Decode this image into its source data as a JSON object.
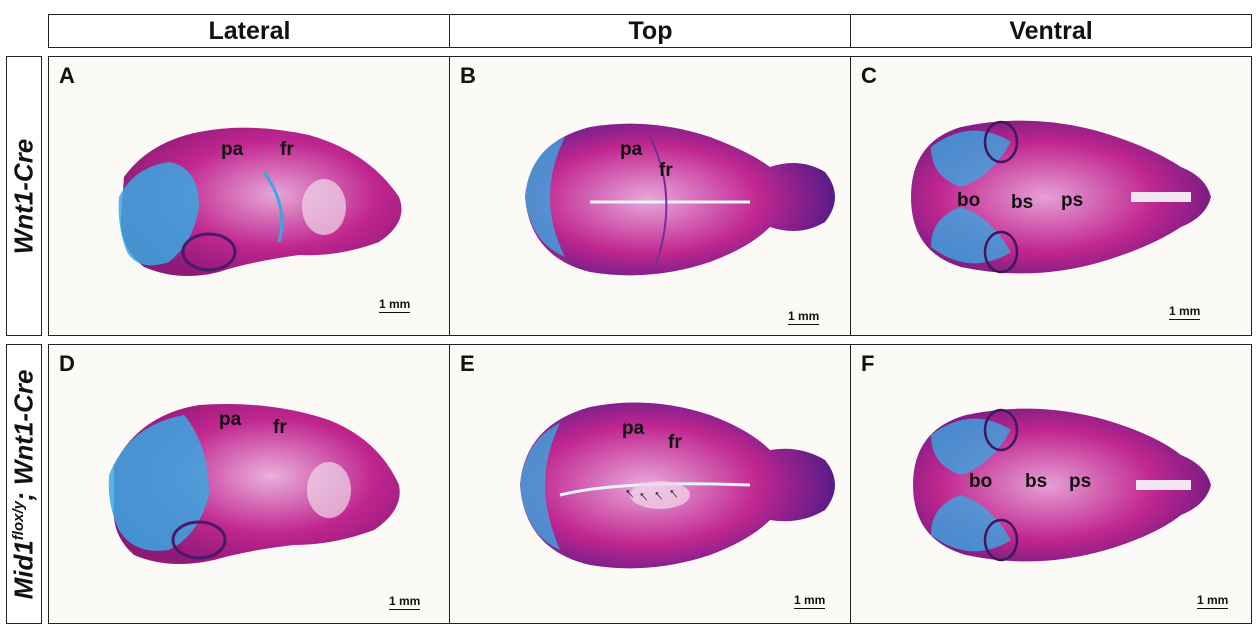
{
  "columns": [
    "Lateral",
    "Top",
    "Ventral"
  ],
  "rows": {
    "top": {
      "label": "Wnt1-Cre"
    },
    "bottom": {
      "label_prefix": "Mid1",
      "label_sup": "flox/y",
      "label_suffix": "; Wnt1-Cre"
    }
  },
  "panels": {
    "A": {
      "letter": "A",
      "labels": [
        "pa",
        "fr"
      ],
      "scale": "1 mm"
    },
    "B": {
      "letter": "B",
      "labels": [
        "pa",
        "fr"
      ],
      "scale": "1 mm"
    },
    "C": {
      "letter": "C",
      "labels": [
        "bo",
        "bs",
        "ps"
      ],
      "scale": "1 mm"
    },
    "D": {
      "letter": "D",
      "labels": [
        "pa",
        "fr"
      ],
      "scale": "1 mm"
    },
    "E": {
      "letter": "E",
      "labels": [
        "pa",
        "fr"
      ],
      "scale": "1 mm"
    },
    "F": {
      "letter": "F",
      "labels": [
        "bo",
        "bs",
        "ps"
      ],
      "scale": "1 mm"
    }
  },
  "colors": {
    "bone_stain": "#c0268f",
    "cartilage_stain": "#3aa8e0",
    "background": "#fbfaf6"
  }
}
